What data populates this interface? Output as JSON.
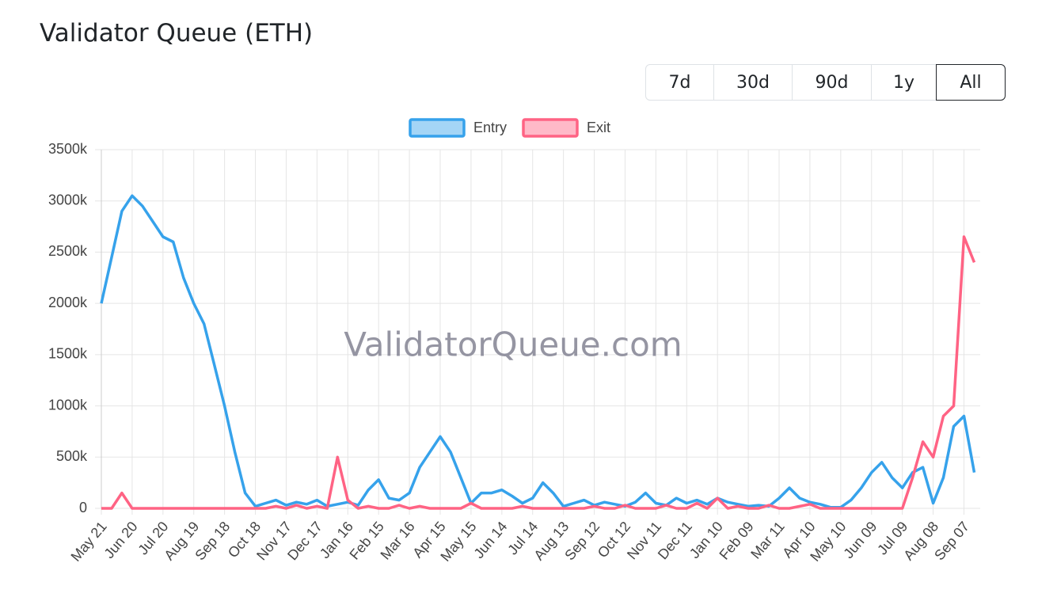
{
  "header": {
    "title": "Validator Queue (ETH)",
    "buttons": [
      "7d",
      "30d",
      "90d",
      "1y",
      "All"
    ],
    "selected": "All"
  },
  "chart_data": {
    "type": "line",
    "watermark": "ValidatorQueue.com",
    "categories": [
      "May 21",
      null,
      null,
      "Jun 20",
      null,
      null,
      "Jul 20",
      null,
      null,
      "Aug 19",
      null,
      null,
      "Sep 18",
      null,
      null,
      "Oct 18",
      null,
      null,
      "Nov 17",
      null,
      null,
      "Dec 17",
      null,
      null,
      "Jan 16",
      null,
      null,
      "Feb 15",
      null,
      null,
      "Mar 16",
      null,
      null,
      "Apr 15",
      null,
      null,
      "May 15",
      null,
      null,
      "Jun 14",
      null,
      null,
      "Jul 14",
      null,
      null,
      "Aug 13",
      null,
      null,
      "Sep 12",
      null,
      null,
      "Oct 12",
      null,
      null,
      "Nov 11",
      null,
      null,
      "Dec 11",
      null,
      null,
      "Jan 10",
      null,
      null,
      "Feb 09",
      null,
      null,
      "Mar 11",
      null,
      null,
      "Apr 10",
      null,
      null,
      "May 10",
      null,
      null,
      "Jun 09",
      null,
      null,
      "Jul 09",
      null,
      null,
      "Aug 08",
      null,
      null,
      "Sep 07",
      null
    ],
    "series": [
      {
        "name": "Entry",
        "color": "#36a2eb",
        "values": [
          2000000,
          2450000,
          2900000,
          3050000,
          2950000,
          2800000,
          2650000,
          2600000,
          2250000,
          2000000,
          1800000,
          1400000,
          1000000,
          550000,
          150000,
          20000,
          50000,
          80000,
          30000,
          60000,
          40000,
          80000,
          20000,
          40000,
          60000,
          30000,
          180000,
          280000,
          100000,
          80000,
          150000,
          400000,
          550000,
          700000,
          550000,
          300000,
          50000,
          150000,
          150000,
          180000,
          120000,
          50000,
          100000,
          250000,
          150000,
          20000,
          50000,
          80000,
          30000,
          60000,
          40000,
          20000,
          60000,
          150000,
          50000,
          30000,
          100000,
          50000,
          80000,
          40000,
          100000,
          60000,
          40000,
          20000,
          30000,
          20000,
          100000,
          200000,
          100000,
          60000,
          40000,
          10000,
          10000,
          80000,
          200000,
          350000,
          450000,
          300000,
          200000,
          350000,
          400000,
          50000,
          300000,
          800000,
          900000,
          350000
        ]
      },
      {
        "name": "Exit",
        "color": "#ff6384",
        "values": [
          0,
          0,
          150000,
          0,
          0,
          0,
          0,
          0,
          0,
          0,
          0,
          0,
          0,
          0,
          0,
          0,
          0,
          20000,
          0,
          30000,
          0,
          20000,
          0,
          500000,
          80000,
          0,
          20000,
          0,
          0,
          30000,
          0,
          20000,
          0,
          0,
          0,
          0,
          50000,
          0,
          0,
          0,
          0,
          20000,
          0,
          0,
          0,
          0,
          0,
          0,
          20000,
          0,
          0,
          30000,
          0,
          0,
          0,
          30000,
          0,
          0,
          50000,
          0,
          100000,
          0,
          20000,
          0,
          0,
          30000,
          0,
          0,
          20000,
          40000,
          0,
          0,
          0,
          0,
          0,
          0,
          0,
          0,
          0,
          300000,
          650000,
          500000,
          900000,
          1000000,
          2650000,
          2400000
        ]
      }
    ],
    "ylim": [
      0,
      3500000
    ],
    "yticks": [
      {
        "value": 0,
        "label": "0"
      },
      {
        "value": 500000,
        "label": "500k"
      },
      {
        "value": 1000000,
        "label": "1000k"
      },
      {
        "value": 1500000,
        "label": "1500k"
      },
      {
        "value": 2000000,
        "label": "2000k"
      },
      {
        "value": 2500000,
        "label": "2500k"
      },
      {
        "value": 3000000,
        "label": "3000k"
      },
      {
        "value": 3500000,
        "label": "3500k"
      }
    ],
    "grid": true
  }
}
